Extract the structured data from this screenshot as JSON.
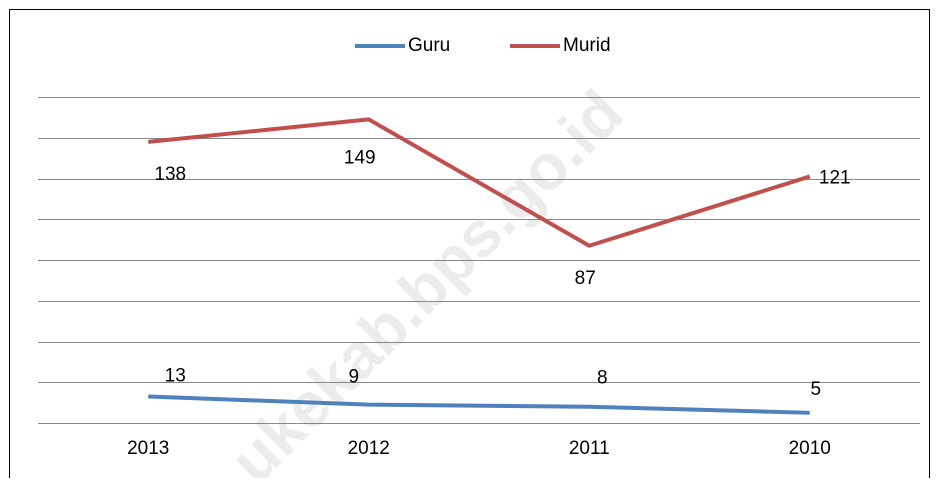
{
  "chart_data": {
    "type": "line",
    "categories": [
      "2013",
      "2012",
      "2011",
      "2010"
    ],
    "series": [
      {
        "name": "Guru",
        "color": "#4f81bd",
        "values": [
          13,
          9,
          8,
          5
        ]
      },
      {
        "name": "Murid",
        "color": "#c0504d",
        "values": [
          138,
          149,
          87,
          121
        ]
      }
    ],
    "ylim": [
      0,
      160
    ],
    "yticks": [
      0,
      20,
      40,
      60,
      80,
      100,
      120,
      140,
      160
    ],
    "grid": true,
    "legend": "top",
    "watermark": "ukekab.bps.go.id"
  }
}
